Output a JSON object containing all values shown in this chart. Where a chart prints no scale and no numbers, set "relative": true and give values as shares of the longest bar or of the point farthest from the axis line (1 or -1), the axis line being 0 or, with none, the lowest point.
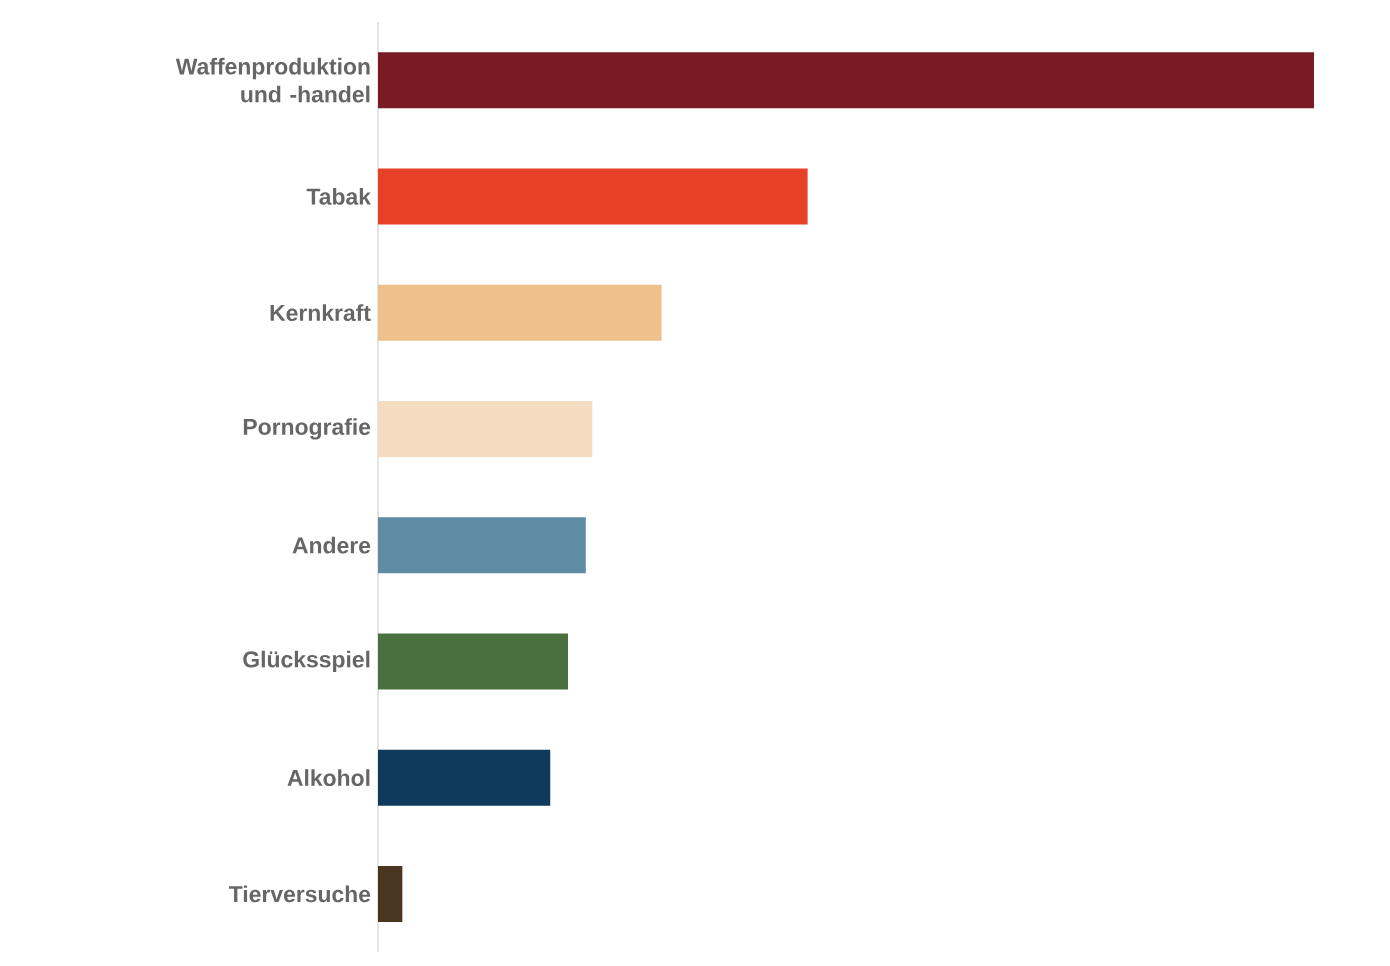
{
  "chart_data": {
    "type": "bar",
    "orientation": "horizontal",
    "relative": true,
    "categories": [
      "Waffenproduktion und -handel",
      "Tabak",
      "Kernkraft",
      "Pornografie",
      "Andere",
      "Glücksspiel",
      "Alkohol",
      "Tierversuche"
    ],
    "values": [
      1,
      0.459,
      0.303,
      0.229,
      0.222,
      0.203,
      0.184,
      0.026
    ],
    "colors": [
      "#7a1a24",
      "#e8412a",
      "#eec08c",
      "#f3dcc0",
      "#5e8ca3",
      "#4a7040",
      "#0f3a5e",
      "#4a3520"
    ]
  }
}
